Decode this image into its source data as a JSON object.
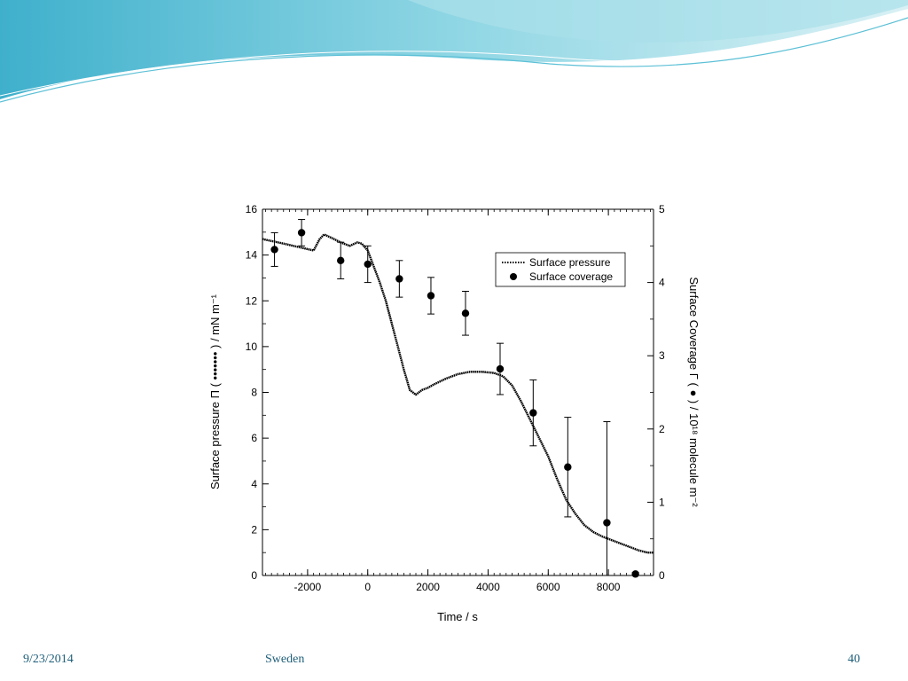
{
  "footer": {
    "date": "9/23/2014",
    "location": "Sweden",
    "page": "40"
  },
  "chart_data": {
    "type": "scatter",
    "xlabel": "Time / s",
    "ylabel": "Surface pressure Π ( ••••••• ) / mN m⁻¹",
    "y2label": "Surface Coverage Γ ( ● ) / 10¹⁸ molecule m⁻²",
    "xlim": [
      -3500,
      9500
    ],
    "ylim": [
      0,
      16
    ],
    "y2lim": [
      0,
      5
    ],
    "xticks": [
      -2000,
      0,
      2000,
      4000,
      6000,
      8000
    ],
    "yticks": [
      0,
      2,
      4,
      6,
      8,
      10,
      12,
      14,
      16
    ],
    "y2ticks": [
      0,
      1,
      2,
      3,
      4,
      5
    ],
    "legend_position": "top-right",
    "grid": false,
    "series": [
      {
        "name": "Surface pressure",
        "style": "dotted-line",
        "axis": "left",
        "x": [
          -3500,
          -2800,
          -2300,
          -1800,
          -1600,
          -1450,
          -1200,
          -900,
          -600,
          -350,
          -200,
          0,
          200,
          400,
          600,
          800,
          1000,
          1200,
          1400,
          1600,
          1800,
          2000,
          2200,
          2600,
          3000,
          3400,
          3800,
          4200,
          4500,
          4800,
          5100,
          5400,
          5700,
          6000,
          6300,
          6600,
          6900,
          7200,
          7500,
          7800,
          8100,
          8400,
          8700,
          9000,
          9300,
          9500
        ],
        "y": [
          14.7,
          14.5,
          14.35,
          14.2,
          14.7,
          14.9,
          14.75,
          14.55,
          14.4,
          14.55,
          14.5,
          14.2,
          13.5,
          12.8,
          12.0,
          11.0,
          10.0,
          9.0,
          8.1,
          7.9,
          8.1,
          8.2,
          8.35,
          8.6,
          8.8,
          8.9,
          8.9,
          8.85,
          8.7,
          8.3,
          7.6,
          6.8,
          6.0,
          5.2,
          4.2,
          3.3,
          2.7,
          2.2,
          1.9,
          1.7,
          1.55,
          1.4,
          1.25,
          1.1,
          1.0,
          1.0
        ]
      },
      {
        "name": "Surface coverage",
        "style": "filled-circle",
        "axis": "right",
        "x": [
          -3100,
          -2200,
          -900,
          0,
          1050,
          2100,
          3250,
          4400,
          5500,
          6650,
          7950,
          8900
        ],
        "y": [
          4.45,
          4.68,
          4.3,
          4.25,
          4.05,
          3.82,
          3.58,
          2.82,
          2.22,
          1.48,
          0.72,
          0.02
        ],
        "err_lo": [
          0.23,
          0.18,
          0.25,
          0.25,
          0.25,
          0.25,
          0.3,
          0.35,
          0.45,
          0.68,
          0.72,
          0.02
        ],
        "err_hi": [
          0.23,
          0.18,
          0.25,
          0.25,
          0.25,
          0.25,
          0.3,
          0.35,
          0.45,
          0.68,
          1.38,
          0.02
        ]
      }
    ]
  },
  "colors": {
    "wave_dark": "#29a8c5",
    "wave_light": "#bfe7ef",
    "footer_text": "#1f5f7a"
  }
}
